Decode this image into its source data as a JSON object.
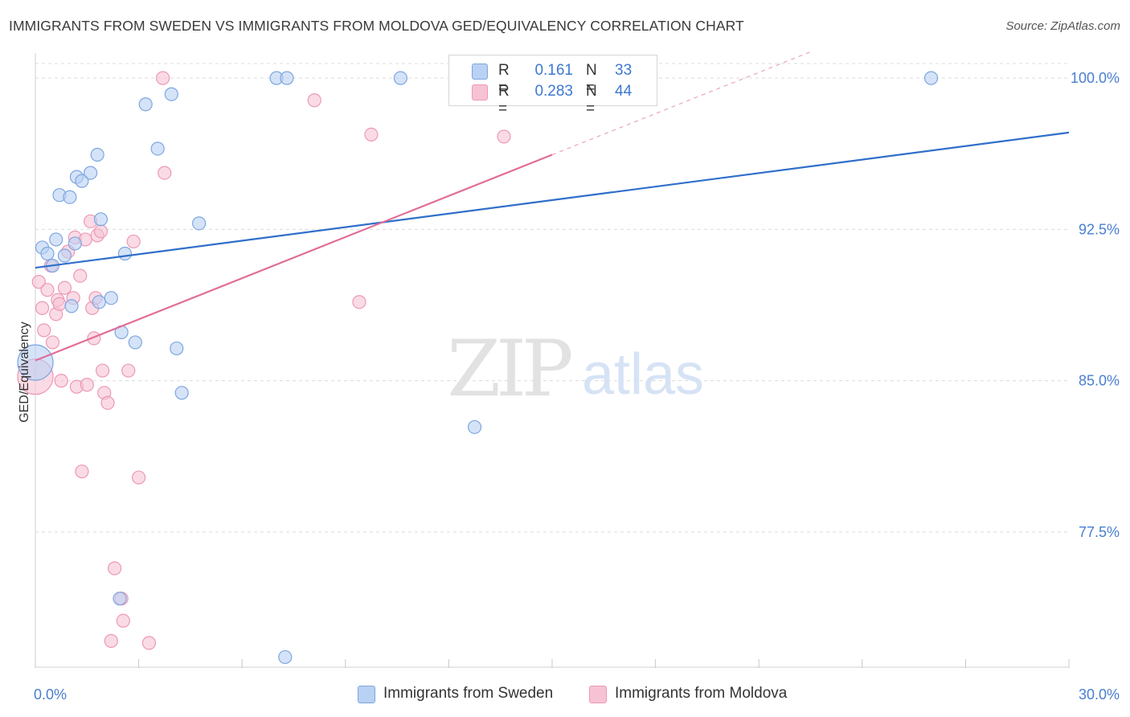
{
  "title": "IMMIGRANTS FROM SWEDEN VS IMMIGRANTS FROM MOLDOVA GED/EQUIVALENCY CORRELATION CHART",
  "source": "Source: ZipAtlas.com",
  "watermark": {
    "zip": "ZIP",
    "atlas": "atlas"
  },
  "legend": {
    "sweden": {
      "r_label": "R =",
      "r_value": "0.161",
      "n_label": "N =",
      "n_value": "33"
    },
    "moldova": {
      "r_label": "R =",
      "r_value": "0.283",
      "n_label": "N =",
      "n_value": "44"
    }
  },
  "bottom_legend": {
    "sweden": "Immigrants from Sweden",
    "moldova": "Immigrants from Moldova"
  },
  "colors": {
    "sweden_fill": "#b9d1f3",
    "sweden_stroke": "#7ea6e0",
    "sweden_line": "#2f6fcb",
    "moldova_fill": "#f7c3d4",
    "moldova_stroke": "#ec99b5",
    "moldova_line": "#e26d98",
    "tick_text": "#4a7fd0",
    "grid": "#dcdcdc"
  },
  "chart_data": {
    "type": "scatter",
    "title": "IMMIGRANTS FROM SWEDEN VS IMMIGRANTS FROM MOLDOVA GED/EQUIVALENCY CORRELATION CHART",
    "xlabel": "",
    "ylabel": "GED/Equivalency",
    "xlim": [
      0,
      30
    ],
    "ylim": [
      70.8,
      101.4
    ],
    "x_tick_labels": [
      "0.0%",
      "30.0%"
    ],
    "y_ticks": [
      77.5,
      85.0,
      92.5,
      100.0
    ],
    "y_tick_labels": [
      "77.5%",
      "85.0%",
      "92.5%",
      "100.0%"
    ],
    "grid": true,
    "series": [
      {
        "name": "Immigrants from Sweden",
        "points": [
          [
            0.0,
            85.9
          ],
          [
            0.2,
            91.6
          ],
          [
            0.35,
            91.3
          ],
          [
            0.5,
            90.7
          ],
          [
            0.6,
            92.0
          ],
          [
            0.7,
            94.2
          ],
          [
            0.85,
            91.2
          ],
          [
            1.0,
            94.1
          ],
          [
            1.05,
            88.7
          ],
          [
            1.15,
            91.8
          ],
          [
            1.2,
            95.1
          ],
          [
            1.35,
            94.9
          ],
          [
            1.6,
            95.3
          ],
          [
            1.8,
            96.2
          ],
          [
            1.85,
            88.9
          ],
          [
            1.9,
            93.0
          ],
          [
            2.2,
            89.1
          ],
          [
            2.45,
            74.2
          ],
          [
            2.5,
            87.4
          ],
          [
            2.6,
            91.3
          ],
          [
            2.9,
            86.9
          ],
          [
            3.2,
            98.7
          ],
          [
            3.55,
            96.5
          ],
          [
            3.95,
            99.2
          ],
          [
            4.1,
            86.6
          ],
          [
            4.25,
            84.4
          ],
          [
            4.75,
            92.8
          ],
          [
            7.0,
            100.0
          ],
          [
            7.25,
            71.3
          ],
          [
            7.3,
            100.0
          ],
          [
            10.6,
            100.0
          ],
          [
            12.75,
            82.7
          ],
          [
            26.0,
            100.0
          ]
        ]
      },
      {
        "name": "Immigrants from Moldova",
        "points": [
          [
            0.0,
            85.2
          ],
          [
            0.1,
            89.9
          ],
          [
            0.2,
            88.6
          ],
          [
            0.25,
            87.5
          ],
          [
            0.35,
            89.5
          ],
          [
            0.45,
            90.7
          ],
          [
            0.5,
            86.9
          ],
          [
            0.6,
            88.3
          ],
          [
            0.65,
            89.0
          ],
          [
            0.7,
            88.8
          ],
          [
            0.75,
            85.0
          ],
          [
            0.85,
            89.6
          ],
          [
            0.95,
            91.4
          ],
          [
            1.1,
            89.1
          ],
          [
            1.15,
            92.1
          ],
          [
            1.2,
            84.7
          ],
          [
            1.3,
            90.2
          ],
          [
            1.35,
            80.5
          ],
          [
            1.45,
            92.0
          ],
          [
            1.5,
            84.8
          ],
          [
            1.6,
            92.9
          ],
          [
            1.65,
            88.6
          ],
          [
            1.7,
            87.1
          ],
          [
            1.75,
            89.1
          ],
          [
            1.8,
            92.2
          ],
          [
            1.9,
            92.4
          ],
          [
            1.95,
            85.5
          ],
          [
            2.0,
            84.4
          ],
          [
            2.1,
            83.9
          ],
          [
            2.2,
            72.1
          ],
          [
            2.3,
            75.7
          ],
          [
            2.5,
            74.2
          ],
          [
            2.55,
            73.1
          ],
          [
            2.7,
            85.5
          ],
          [
            2.85,
            91.9
          ],
          [
            3.0,
            80.2
          ],
          [
            3.3,
            72.0
          ],
          [
            3.7,
            100.0
          ],
          [
            3.75,
            95.3
          ],
          [
            8.1,
            98.9
          ],
          [
            9.4,
            88.9
          ],
          [
            9.75,
            97.2
          ],
          [
            13.5,
            100.0
          ],
          [
            13.6,
            97.1
          ]
        ]
      }
    ],
    "trend_lines": [
      {
        "name": "Immigrants from Sweden",
        "x": [
          0,
          30
        ],
        "y": [
          90.6,
          97.3
        ],
        "style": "solid"
      },
      {
        "name": "Immigrants from Moldova",
        "x": [
          0,
          15
        ],
        "y": [
          86.0,
          96.2
        ],
        "style": "solid"
      },
      {
        "name": "Immigrants from Moldova extension",
        "x": [
          15,
          30
        ],
        "y": [
          96.2,
          106.4
        ],
        "style": "dashed"
      }
    ],
    "legend_position": "top-center",
    "statistics": [
      {
        "series": "Immigrants from Sweden",
        "R": 0.161,
        "N": 33
      },
      {
        "series": "Immigrants from Moldova",
        "R": 0.283,
        "N": 44
      }
    ]
  }
}
